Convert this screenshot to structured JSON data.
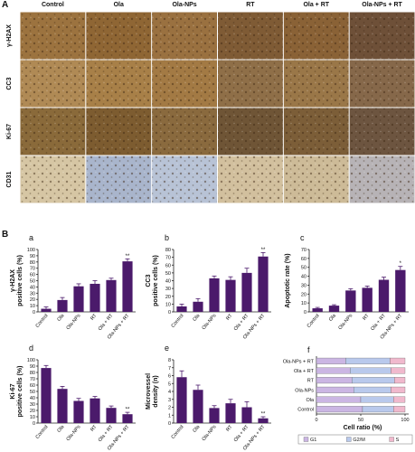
{
  "panel_a": {
    "label": "A",
    "columns": [
      "Control",
      "Ola",
      "Ola-NPs",
      "RT",
      "Ola + RT",
      "Ola-NPs + RT"
    ],
    "rows": [
      "γ-H2AX",
      "CC3",
      "Ki-67",
      "CD31"
    ]
  },
  "panel_b_label": "B",
  "chart_data": [
    {
      "type": "bar",
      "panel": "a",
      "ylabel": [
        "γ-H2AX",
        "positive cells (%)"
      ],
      "categories": [
        "Control",
        "Ola",
        "Ola-NPs",
        "RT",
        "Ola + RT",
        "Ola-NPs + RT"
      ],
      "values": [
        5,
        19,
        41,
        45,
        51,
        81
      ],
      "errors": [
        3,
        4,
        4,
        5,
        3,
        4
      ],
      "ylim": [
        0,
        100
      ],
      "yticks": [
        0,
        10,
        20,
        30,
        40,
        50,
        60,
        70,
        80,
        90,
        100
      ],
      "color": "#4b1a6b",
      "annotations": [
        {
          "text": "**",
          "category": "Ola-NPs + RT"
        }
      ]
    },
    {
      "type": "bar",
      "panel": "b",
      "ylabel": [
        "CC3",
        "positive cells (%)"
      ],
      "categories": [
        "Control",
        "Ola",
        "Ola-NPs",
        "RT",
        "Ola + RT",
        "Ola-NPs + RT"
      ],
      "values": [
        7,
        13,
        43,
        41,
        50,
        71
      ],
      "errors": [
        3,
        4,
        3,
        4,
        6,
        5
      ],
      "ylim": [
        0,
        80
      ],
      "yticks": [
        0,
        10,
        20,
        30,
        40,
        50,
        60,
        70,
        80
      ],
      "color": "#4b1a6b",
      "annotations": [
        {
          "text": "**",
          "category": "Ola-NPs + RT"
        }
      ]
    },
    {
      "type": "bar",
      "panel": "c",
      "ylabel": [
        "Apoptotic rate (%)"
      ],
      "categories": [
        "Control",
        "Ola",
        "Ola-NPs",
        "RT",
        "Ola + RT",
        "Ola-NPs + RT"
      ],
      "values": [
        4,
        7,
        24,
        27,
        36,
        47
      ],
      "errors": [
        1,
        1,
        2,
        2,
        3,
        4
      ],
      "ylim": [
        0,
        70
      ],
      "yticks": [
        0,
        10,
        20,
        30,
        40,
        50,
        60,
        70
      ],
      "color": "#4b1a6b",
      "annotations": [
        {
          "text": "*",
          "category": "Ola-NPs + RT"
        }
      ]
    },
    {
      "type": "bar",
      "panel": "d",
      "ylabel": [
        "Ki-67",
        "positive cells (%)"
      ],
      "categories": [
        "Control",
        "Ola",
        "Ola-NPs",
        "RT",
        "Ola + RT",
        "Ola-NPs + RT"
      ],
      "values": [
        87,
        54,
        35,
        39,
        24,
        14
      ],
      "errors": [
        4,
        4,
        4,
        3,
        3,
        3
      ],
      "ylim": [
        0,
        100
      ],
      "yticks": [
        0,
        10,
        20,
        30,
        40,
        50,
        60,
        70,
        80,
        90,
        100
      ],
      "color": "#4b1a6b",
      "annotations": [
        {
          "text": "**",
          "category": "Ola-NPs + RT"
        }
      ]
    },
    {
      "type": "bar",
      "panel": "e",
      "ylabel": [
        "Microvessel",
        "density (n)"
      ],
      "categories": [
        "Control",
        "Ola",
        "Ola-NPs",
        "RT",
        "Ola + RT",
        "Ola-NPs + RT"
      ],
      "values": [
        5.8,
        4.2,
        1.9,
        2.5,
        2.0,
        0.6
      ],
      "errors": [
        0.8,
        0.6,
        0.3,
        0.5,
        0.7,
        0.2
      ],
      "ylim": [
        0,
        8
      ],
      "yticks": [
        0,
        1,
        2,
        3,
        4,
        5,
        6,
        7,
        8
      ],
      "color": "#4b1a6b",
      "annotations": [
        {
          "text": "**",
          "category": "Ola-NPs + RT"
        }
      ]
    },
    {
      "type": "hbar_stacked",
      "panel": "f",
      "xlabel": "Cell ratio (%)",
      "categories": [
        "Control",
        "Ola",
        "Ola-NPs",
        "RT",
        "Ola + RT",
        "Ola-NPs + RT"
      ],
      "series": [
        {
          "name": "G1",
          "color": "#cbb6e3",
          "values": [
            52,
            50,
            42,
            40,
            38,
            33
          ]
        },
        {
          "name": "G2/M",
          "color": "#b9c9ec",
          "values": [
            35,
            37,
            42,
            48,
            46,
            50
          ]
        },
        {
          "name": "S",
          "color": "#f0b9cd",
          "values": [
            13,
            13,
            16,
            12,
            16,
            17
          ]
        }
      ],
      "xlim": [
        0,
        100
      ],
      "xticks": [
        0,
        50,
        100
      ],
      "legend": "bottom"
    }
  ]
}
